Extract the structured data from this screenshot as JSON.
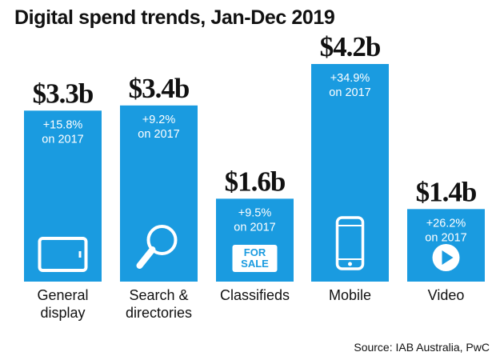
{
  "chart_data": {
    "type": "bar",
    "title": "Digital spend trends, Jan-Dec 2019",
    "source": "Source: IAB Australia, PwC",
    "unit": "$b",
    "ylim": [
      0,
      4.2
    ],
    "categories": [
      {
        "label_lines": [
          "General",
          "display"
        ],
        "value": 3.3,
        "value_label": "$3.3b",
        "change": "+15.8%",
        "change_suffix": "on 2017",
        "icon": "tablet-icon"
      },
      {
        "label_lines": [
          "Search &",
          "directories"
        ],
        "value": 3.4,
        "value_label": "$3.4b",
        "change": "+9.2%",
        "change_suffix": "on 2017",
        "icon": "magnifier-icon"
      },
      {
        "label_lines": [
          "Classifieds"
        ],
        "value": 1.6,
        "value_label": "$1.6b",
        "change": "+9.5%",
        "change_suffix": "on 2017",
        "icon": "for-sale-sign-icon",
        "icon_text": [
          "FOR",
          "SALE"
        ]
      },
      {
        "label_lines": [
          "Mobile"
        ],
        "value": 4.2,
        "value_label": "$4.2b",
        "change": "+34.9%",
        "change_suffix": "on 2017",
        "icon": "smartphone-icon"
      },
      {
        "label_lines": [
          "Video"
        ],
        "value": 1.4,
        "value_label": "$1.4b",
        "change": "+26.2%",
        "change_suffix": "on 2017",
        "icon": "play-button-icon"
      }
    ],
    "bar_color": "#1a9be0",
    "grid": false,
    "legend": "none"
  }
}
